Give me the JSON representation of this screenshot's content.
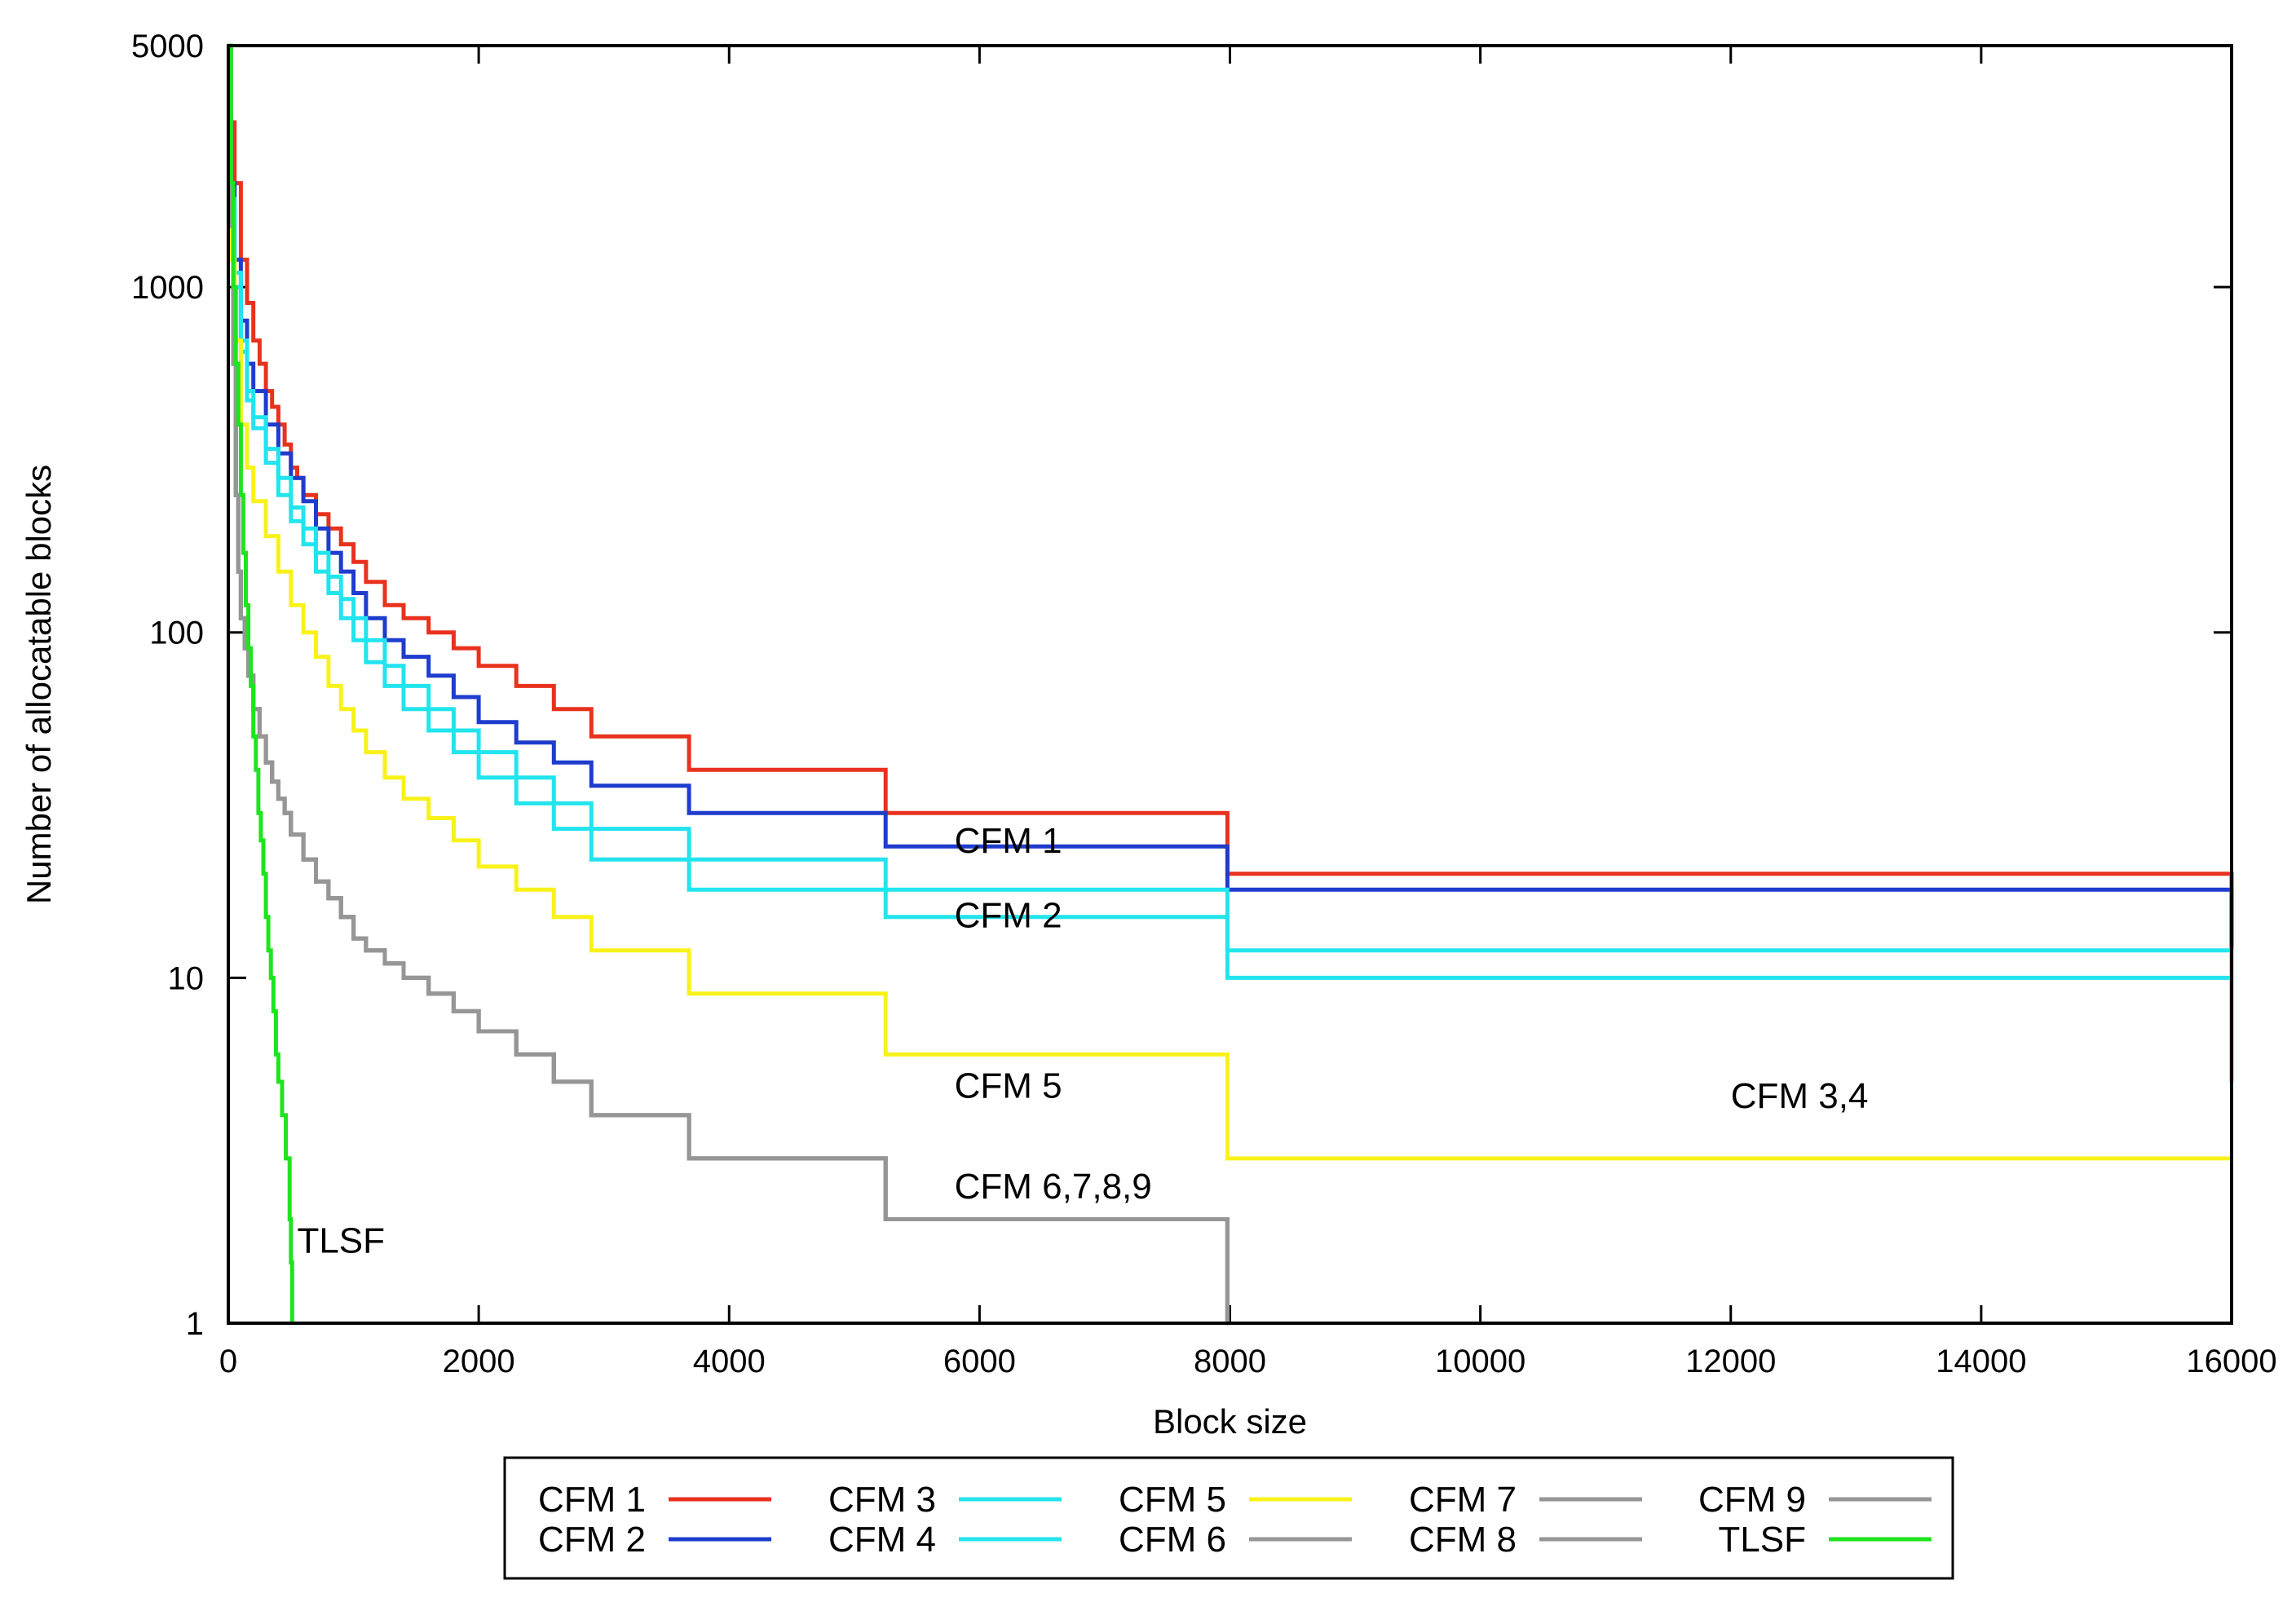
{
  "chart_data": {
    "type": "line",
    "title": "",
    "xlabel": "Block size",
    "ylabel": "Number of allocatable blocks",
    "xlim": [
      0,
      16000
    ],
    "ylim": [
      1,
      5000
    ],
    "yscale": "log",
    "grid": false,
    "legend_position": "bottom",
    "xticks": [
      0,
      2000,
      4000,
      6000,
      8000,
      10000,
      12000,
      14000,
      16000
    ],
    "yticks": [
      1,
      10,
      100,
      1000,
      5000
    ],
    "xtick_labels": [
      "0",
      "2000",
      "4000",
      "6000",
      "8000",
      "10000",
      "12000",
      "14000",
      "16000"
    ],
    "ytick_labels": [
      "1",
      "10",
      "100",
      "1000",
      "5000"
    ],
    "series": [
      {
        "name": "CFM 1",
        "color": "#e8321e",
        "x": [
          0,
          20,
          50,
          100,
          150,
          200,
          250,
          300,
          350,
          400,
          450,
          500,
          550,
          600,
          700,
          800,
          900,
          1000,
          1100,
          1250,
          1400,
          1600,
          1800,
          2000,
          2300,
          2600,
          2900,
          3680,
          5250,
          7980,
          16000
        ],
        "y": [
          5000,
          3000,
          2000,
          1200,
          900,
          700,
          600,
          500,
          450,
          400,
          350,
          300,
          280,
          250,
          220,
          200,
          180,
          160,
          140,
          120,
          110,
          100,
          90,
          80,
          70,
          60,
          50,
          40,
          30,
          20,
          10
        ]
      },
      {
        "name": "CFM 2",
        "color": "#1e3ccd",
        "x": [
          0,
          20,
          50,
          100,
          150,
          200,
          300,
          400,
          500,
          600,
          700,
          800,
          900,
          1000,
          1100,
          1250,
          1400,
          1600,
          1800,
          2000,
          2300,
          2600,
          2900,
          3680,
          5250,
          7980,
          16000
        ],
        "y": [
          5000,
          2000,
          1200,
          800,
          600,
          500,
          400,
          330,
          280,
          240,
          200,
          170,
          150,
          130,
          110,
          95,
          85,
          75,
          65,
          55,
          48,
          42,
          36,
          30,
          24,
          18,
          12
        ]
      },
      {
        "name": "CFM 3",
        "color": "#22e4ee",
        "x": [
          0,
          20,
          50,
          100,
          150,
          200,
          300,
          400,
          500,
          600,
          700,
          800,
          900,
          1000,
          1100,
          1250,
          1400,
          1600,
          1800,
          2000,
          2300,
          2600,
          2900,
          3680,
          5250,
          7980,
          16000
        ],
        "y": [
          5000,
          1800,
          1100,
          700,
          500,
          420,
          340,
          280,
          230,
          200,
          170,
          145,
          125,
          110,
          95,
          80,
          70,
          60,
          52,
          45,
          38,
          32,
          27,
          22,
          18,
          12,
          6
        ]
      },
      {
        "name": "CFM 4",
        "color": "#22e4ee",
        "x": [
          0,
          20,
          50,
          100,
          150,
          200,
          300,
          400,
          500,
          600,
          700,
          800,
          900,
          1000,
          1100,
          1250,
          1400,
          1600,
          1800,
          2000,
          2300,
          2600,
          2900,
          3680,
          5250,
          7980,
          16000
        ],
        "y": [
          5000,
          1700,
          1000,
          650,
          470,
          390,
          310,
          250,
          210,
          180,
          150,
          130,
          110,
          95,
          82,
          70,
          60,
          52,
          45,
          38,
          32,
          27,
          22,
          18,
          15,
          10,
          5
        ]
      },
      {
        "name": "CFM 5",
        "color": "#f8f21a",
        "x": [
          0,
          20,
          50,
          100,
          150,
          200,
          300,
          400,
          500,
          600,
          700,
          800,
          900,
          1000,
          1100,
          1250,
          1400,
          1600,
          1800,
          2000,
          2300,
          2600,
          2900,
          3680,
          5250,
          7980,
          16000
        ],
        "y": [
          5000,
          1200,
          700,
          400,
          300,
          240,
          190,
          150,
          120,
          100,
          85,
          70,
          60,
          52,
          45,
          38,
          33,
          29,
          25,
          21,
          18,
          15,
          12,
          9,
          6,
          3,
          3
        ]
      },
      {
        "name": "CFM 6",
        "color": "#969696",
        "x": [
          0,
          20,
          40,
          60,
          80,
          100,
          130,
          160,
          200,
          250,
          300,
          350,
          400,
          450,
          500,
          600,
          700,
          800,
          900,
          1000,
          1100,
          1250,
          1400,
          1600,
          1800,
          2000,
          2300,
          2600,
          2900,
          3680,
          5250,
          7980,
          8000
        ],
        "y": [
          5000,
          1500,
          600,
          250,
          150,
          110,
          90,
          75,
          60,
          50,
          42,
          37,
          33,
          30,
          26,
          22,
          19,
          17,
          15,
          13,
          12,
          11,
          10,
          9,
          8,
          7,
          6,
          5,
          4,
          3,
          2,
          1,
          1
        ]
      },
      {
        "name": "CFM 7",
        "color": "#969696",
        "x": [
          0,
          20,
          40,
          60,
          80,
          100,
          130,
          160,
          200,
          250,
          300,
          350,
          400,
          450,
          500,
          600,
          700,
          800,
          900,
          1000,
          1100,
          1250,
          1400,
          1600,
          1800,
          2000,
          2300,
          2600,
          2900,
          3680,
          5250,
          7980,
          8000
        ],
        "y": [
          5000,
          1500,
          600,
          250,
          150,
          110,
          90,
          75,
          60,
          50,
          42,
          37,
          33,
          30,
          26,
          22,
          19,
          17,
          15,
          13,
          12,
          11,
          10,
          9,
          8,
          7,
          6,
          5,
          4,
          3,
          2,
          1,
          1
        ]
      },
      {
        "name": "CFM 8",
        "color": "#969696",
        "x": [
          0,
          20,
          40,
          60,
          80,
          100,
          130,
          160,
          200,
          250,
          300,
          350,
          400,
          450,
          500,
          600,
          700,
          800,
          900,
          1000,
          1100,
          1250,
          1400,
          1600,
          1800,
          2000,
          2300,
          2600,
          2900,
          3680,
          5250,
          7980,
          8000
        ],
        "y": [
          5000,
          1500,
          600,
          250,
          150,
          110,
          90,
          75,
          60,
          50,
          42,
          37,
          33,
          30,
          26,
          22,
          19,
          17,
          15,
          13,
          12,
          11,
          10,
          9,
          8,
          7,
          6,
          5,
          4,
          3,
          2,
          1,
          1
        ]
      },
      {
        "name": "CFM 9",
        "color": "#969696",
        "x": [
          0,
          20,
          40,
          60,
          80,
          100,
          130,
          160,
          200,
          250,
          300,
          350,
          400,
          450,
          500,
          600,
          700,
          800,
          900,
          1000,
          1100,
          1250,
          1400,
          1600,
          1800,
          2000,
          2300,
          2600,
          2900,
          3680,
          5250,
          7980,
          8000
        ],
        "y": [
          5000,
          1500,
          600,
          250,
          150,
          110,
          90,
          75,
          60,
          50,
          42,
          37,
          33,
          30,
          26,
          22,
          19,
          17,
          15,
          13,
          12,
          11,
          10,
          9,
          8,
          7,
          6,
          5,
          4,
          3,
          2,
          1,
          1
        ]
      },
      {
        "name": "TLSF",
        "color": "#1ee41e",
        "x": [
          0,
          20,
          40,
          60,
          80,
          100,
          120,
          140,
          160,
          180,
          200,
          220,
          240,
          260,
          280,
          300,
          320,
          340,
          360,
          380,
          400,
          430,
          460,
          490,
          500,
          510
        ],
        "y": [
          5000,
          2000,
          1000,
          600,
          400,
          250,
          170,
          120,
          90,
          70,
          50,
          40,
          30,
          25,
          20,
          15,
          12,
          10,
          8,
          6,
          5,
          4,
          3,
          2,
          1.5,
          1
        ]
      }
    ],
    "annotations": [
      {
        "text": "CFM 1",
        "x": 5800,
        "y": 23
      },
      {
        "text": "CFM 2",
        "x": 5800,
        "y": 14
      },
      {
        "text": "CFM 5",
        "x": 5800,
        "y": 4.5
      },
      {
        "text": "CFM 6,7,8,9",
        "x": 5800,
        "y": 2.3
      },
      {
        "text": "CFM 3,4",
        "x": 12000,
        "y": 4.2
      },
      {
        "text": "TLSF",
        "x": 550,
        "y": 1.6
      }
    ]
  }
}
